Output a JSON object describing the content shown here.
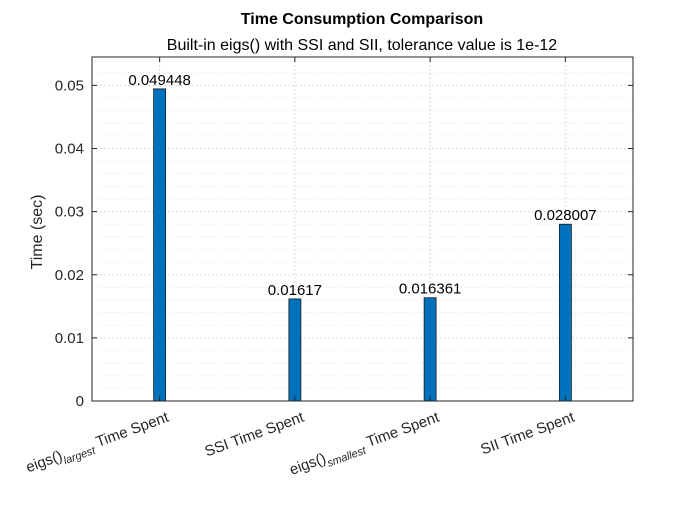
{
  "chart_data": {
    "type": "bar",
    "title": "Time Consumption Comparison",
    "subtitle": "Built-in eigs() with SSI and SII, tolerance value is 1e-12",
    "ylabel": "Time (sec)",
    "xlabel": "",
    "categories": [
      {
        "main": "eigs()",
        "sub": "largest",
        "suffix": " Time Spent"
      },
      {
        "main": "SSI Time Spent",
        "sub": "",
        "suffix": ""
      },
      {
        "main": "eigs()",
        "sub": "smallest",
        "suffix": " Time Spent"
      },
      {
        "main": "SII Time Spent",
        "sub": "",
        "suffix": ""
      }
    ],
    "values": [
      0.049448,
      0.01617,
      0.016361,
      0.028007
    ],
    "data_labels": [
      "0.049448",
      "0.01617",
      "0.016361",
      "0.028007"
    ],
    "ylim": [
      0,
      0.0545
    ],
    "yticks": [
      0,
      0.01,
      0.02,
      0.03,
      0.04,
      0.05
    ],
    "ytick_labels": [
      "0",
      "0.01",
      "0.02",
      "0.03",
      "0.04",
      "0.05"
    ],
    "grid": true,
    "minor_grid": true,
    "bar_color": "#0072BD"
  }
}
